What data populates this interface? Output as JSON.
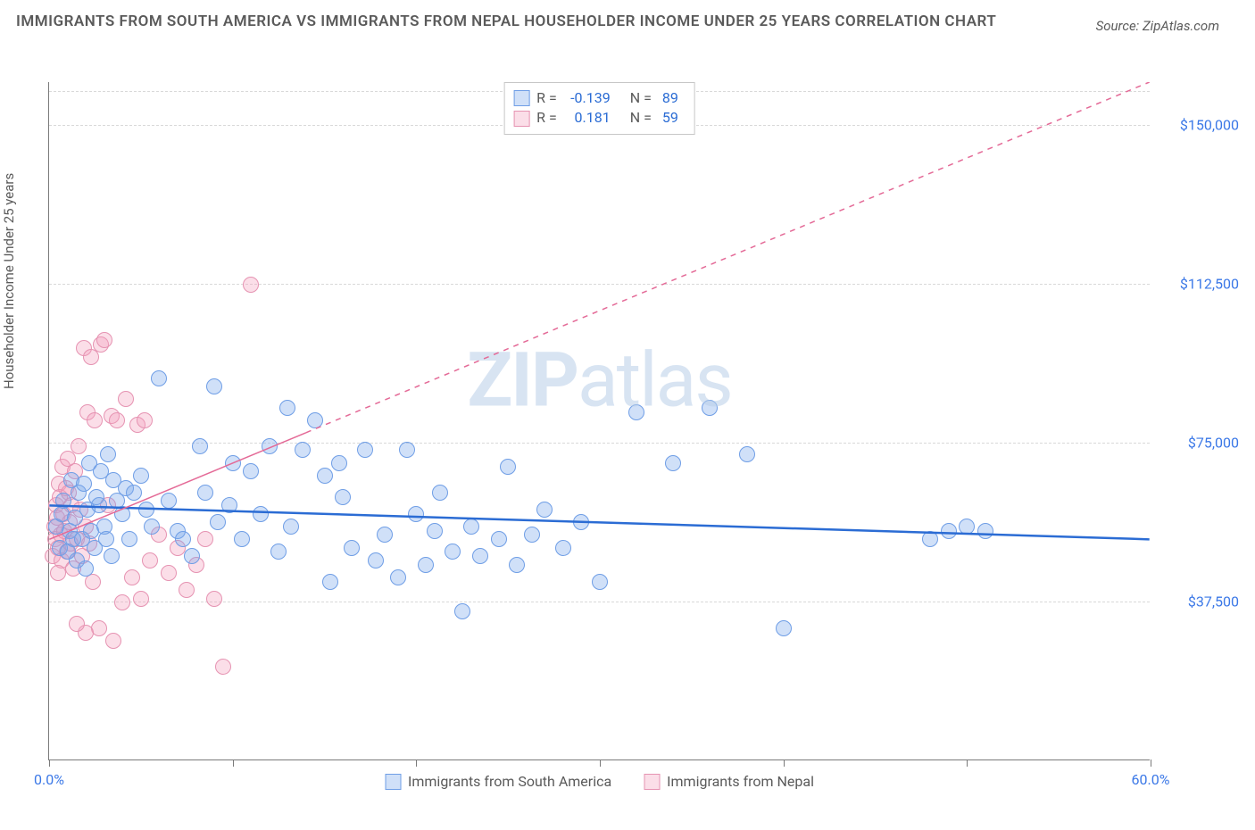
{
  "title": "IMMIGRANTS FROM SOUTH AMERICA VS IMMIGRANTS FROM NEPAL HOUSEHOLDER INCOME UNDER 25 YEARS CORRELATION CHART",
  "source": "Source: ZipAtlas.com",
  "watermark_bold": "ZIP",
  "watermark_rest": "atlas",
  "y_axis_label": "Householder Income Under 25 years",
  "xlim": [
    0,
    60
  ],
  "ylim": [
    0,
    160000
  ],
  "x_ticks": [
    0,
    10,
    20,
    30,
    40,
    50,
    60
  ],
  "x_tick_labels": {
    "0": "0.0%",
    "60": "60.0%"
  },
  "y_gridlines": [
    37500,
    75000,
    112500,
    150000
  ],
  "y_tick_labels": [
    "$37,500",
    "$75,000",
    "$112,500",
    "$150,000"
  ],
  "background_color": "#ffffff",
  "grid_color": "#d9d9d9",
  "axis_color": "#7a7a7a",
  "tick_label_color": "#3b78e7",
  "series": [
    {
      "name": "Immigrants from South America",
      "fill": "rgba(120,165,236,0.35)",
      "stroke": "#6f9ee6",
      "marker_r": 9,
      "regression": {
        "x1": 0,
        "y1": 60000,
        "x2": 60,
        "y2": 52000,
        "dash": "none",
        "color": "#2b6cd4",
        "width": 2.5
      },
      "R": "-0.139",
      "N": "89",
      "points": [
        [
          0.4,
          55000
        ],
        [
          0.6,
          50000
        ],
        [
          0.7,
          58000
        ],
        [
          0.8,
          61000
        ],
        [
          1.0,
          49000
        ],
        [
          1.1,
          54000
        ],
        [
          1.2,
          66000
        ],
        [
          1.3,
          52000
        ],
        [
          1.4,
          57000
        ],
        [
          1.5,
          47000
        ],
        [
          1.6,
          63000
        ],
        [
          1.8,
          52000
        ],
        [
          1.9,
          65000
        ],
        [
          2.0,
          45000
        ],
        [
          2.1,
          59000
        ],
        [
          2.2,
          70000
        ],
        [
          2.3,
          54000
        ],
        [
          2.5,
          50000
        ],
        [
          2.6,
          62000
        ],
        [
          2.7,
          60000
        ],
        [
          2.8,
          68000
        ],
        [
          3.0,
          55000
        ],
        [
          3.1,
          52000
        ],
        [
          3.2,
          72000
        ],
        [
          3.4,
          48000
        ],
        [
          3.5,
          66000
        ],
        [
          3.7,
          61000
        ],
        [
          4.0,
          58000
        ],
        [
          4.2,
          64000
        ],
        [
          4.4,
          52000
        ],
        [
          4.6,
          63000
        ],
        [
          5.0,
          67000
        ],
        [
          5.3,
          59000
        ],
        [
          5.6,
          55000
        ],
        [
          6.0,
          90000
        ],
        [
          6.5,
          61000
        ],
        [
          7.0,
          54000
        ],
        [
          7.3,
          52000
        ],
        [
          7.8,
          48000
        ],
        [
          8.2,
          74000
        ],
        [
          8.5,
          63000
        ],
        [
          9.0,
          88000
        ],
        [
          9.2,
          56000
        ],
        [
          9.8,
          60000
        ],
        [
          10.0,
          70000
        ],
        [
          10.5,
          52000
        ],
        [
          11.0,
          68000
        ],
        [
          11.5,
          58000
        ],
        [
          12.0,
          74000
        ],
        [
          12.5,
          49000
        ],
        [
          13.0,
          83000
        ],
        [
          13.2,
          55000
        ],
        [
          13.8,
          73000
        ],
        [
          14.5,
          80000
        ],
        [
          15.0,
          67000
        ],
        [
          15.3,
          42000
        ],
        [
          15.8,
          70000
        ],
        [
          16.0,
          62000
        ],
        [
          16.5,
          50000
        ],
        [
          17.2,
          73000
        ],
        [
          17.8,
          47000
        ],
        [
          18.3,
          53000
        ],
        [
          19.0,
          43000
        ],
        [
          19.5,
          73000
        ],
        [
          20.0,
          58000
        ],
        [
          20.5,
          46000
        ],
        [
          21.0,
          54000
        ],
        [
          21.3,
          63000
        ],
        [
          22.0,
          49000
        ],
        [
          22.5,
          35000
        ],
        [
          23.0,
          55000
        ],
        [
          23.5,
          48000
        ],
        [
          24.5,
          52000
        ],
        [
          25.0,
          69000
        ],
        [
          25.5,
          46000
        ],
        [
          26.3,
          53000
        ],
        [
          27.0,
          59000
        ],
        [
          28.0,
          50000
        ],
        [
          29.0,
          56000
        ],
        [
          30.0,
          42000
        ],
        [
          32.0,
          82000
        ],
        [
          34.0,
          70000
        ],
        [
          36.0,
          83000
        ],
        [
          38.0,
          72000
        ],
        [
          40.0,
          31000
        ],
        [
          48.0,
          52000
        ],
        [
          49.0,
          54000
        ],
        [
          50.0,
          55000
        ],
        [
          51.0,
          54000
        ]
      ]
    },
    {
      "name": "Immigrants from Nepal",
      "fill": "rgba(244,160,190,0.35)",
      "stroke": "#e693b2",
      "marker_r": 9,
      "regression": {
        "x1": 0,
        "y1": 52000,
        "x2": 60,
        "y2": 160000,
        "dash": "6,6",
        "color": "#e46a97",
        "width": 1.5,
        "solid_until_x": 14
      },
      "R": "0.181",
      "N": "59",
      "points": [
        [
          0.2,
          48000
        ],
        [
          0.3,
          55000
        ],
        [
          0.35,
          52000
        ],
        [
          0.4,
          60000
        ],
        [
          0.45,
          57000
        ],
        [
          0.5,
          50000
        ],
        [
          0.55,
          65000
        ],
        [
          0.6,
          62000
        ],
        [
          0.65,
          53000
        ],
        [
          0.7,
          47000
        ],
        [
          0.75,
          69000
        ],
        [
          0.8,
          58000
        ],
        [
          0.85,
          54000
        ],
        [
          0.9,
          64000
        ],
        [
          0.95,
          49000
        ],
        [
          1.0,
          71000
        ],
        [
          1.05,
          63000
        ],
        [
          1.1,
          56000
        ],
        [
          1.15,
          51000
        ],
        [
          1.2,
          60000
        ],
        [
          1.3,
          45000
        ],
        [
          1.4,
          68000
        ],
        [
          1.5,
          52000
        ],
        [
          1.6,
          74000
        ],
        [
          1.7,
          59000
        ],
        [
          1.8,
          48000
        ],
        [
          1.9,
          97000
        ],
        [
          2.0,
          55000
        ],
        [
          2.1,
          82000
        ],
        [
          2.2,
          51000
        ],
        [
          2.3,
          95000
        ],
        [
          2.4,
          42000
        ],
        [
          2.5,
          80000
        ],
        [
          2.7,
          31000
        ],
        [
          2.8,
          98000
        ],
        [
          3.0,
          99000
        ],
        [
          3.2,
          60000
        ],
        [
          3.4,
          81000
        ],
        [
          3.5,
          28000
        ],
        [
          3.7,
          80000
        ],
        [
          4.0,
          37000
        ],
        [
          4.2,
          85000
        ],
        [
          4.5,
          43000
        ],
        [
          4.8,
          79000
        ],
        [
          5.0,
          38000
        ],
        [
          5.2,
          80000
        ],
        [
          5.5,
          47000
        ],
        [
          6.0,
          53000
        ],
        [
          6.5,
          44000
        ],
        [
          7.0,
          50000
        ],
        [
          7.5,
          40000
        ],
        [
          8.0,
          46000
        ],
        [
          8.5,
          52000
        ],
        [
          9.0,
          38000
        ],
        [
          9.5,
          22000
        ],
        [
          11.0,
          112000
        ],
        [
          2.0,
          30000
        ],
        [
          1.5,
          32000
        ],
        [
          0.5,
          44000
        ]
      ]
    }
  ],
  "legend_top": [
    {
      "swatch_fill": "rgba(120,165,236,0.35)",
      "swatch_stroke": "#6f9ee6",
      "R_label": "R =",
      "R": "-0.139",
      "N_label": "N =",
      "N": "89"
    },
    {
      "swatch_fill": "rgba(244,160,190,0.35)",
      "swatch_stroke": "#e693b2",
      "R_label": "R =",
      "R": "0.181",
      "N_label": "N =",
      "N": "59"
    }
  ],
  "legend_bottom": [
    {
      "swatch_fill": "rgba(120,165,236,0.35)",
      "swatch_stroke": "#6f9ee6",
      "label": "Immigrants from South America"
    },
    {
      "swatch_fill": "rgba(244,160,190,0.35)",
      "swatch_stroke": "#e693b2",
      "label": "Immigrants from Nepal"
    }
  ]
}
